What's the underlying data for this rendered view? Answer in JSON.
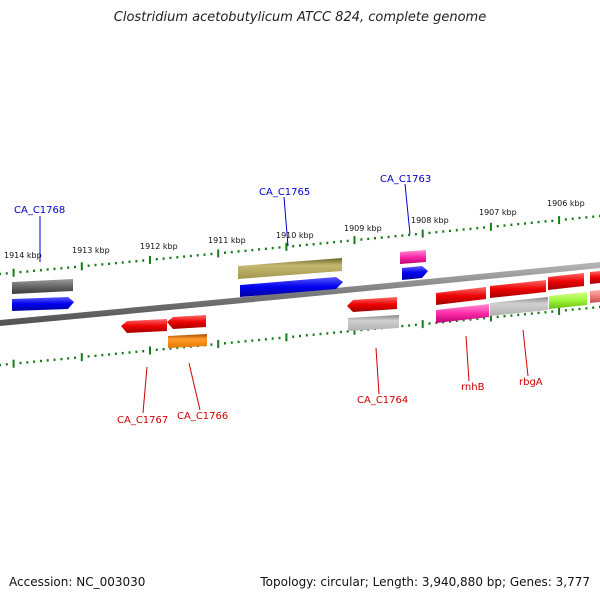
{
  "title": "Clostridium acetobutylicum ATCC 824, complete genome",
  "footer": {
    "accession": "Accession: NC_003030",
    "summary": "Topology: circular; Length: 3,940,880 bp; Genes: 3,777"
  },
  "scale_labels": [
    "1914 kbp",
    "1913 kbp",
    "1912 kbp",
    "1911 kbp",
    "1910 kbp",
    "1909 kbp",
    "1908 kbp",
    "1907 kbp",
    "1906 kbp"
  ],
  "gene_labels": {
    "top": [
      "CA_C1768",
      "CA_C1765",
      "CA_C1763"
    ],
    "bottom": [
      "CA_C1767",
      "CA_C1766",
      "CA_C1764",
      "rnhB",
      "rbgA"
    ]
  },
  "colors": {
    "top_label": "#0000cc",
    "bottom_label": "#cc0000",
    "tick": "#1a7a1a",
    "backbone": "#808080"
  }
}
